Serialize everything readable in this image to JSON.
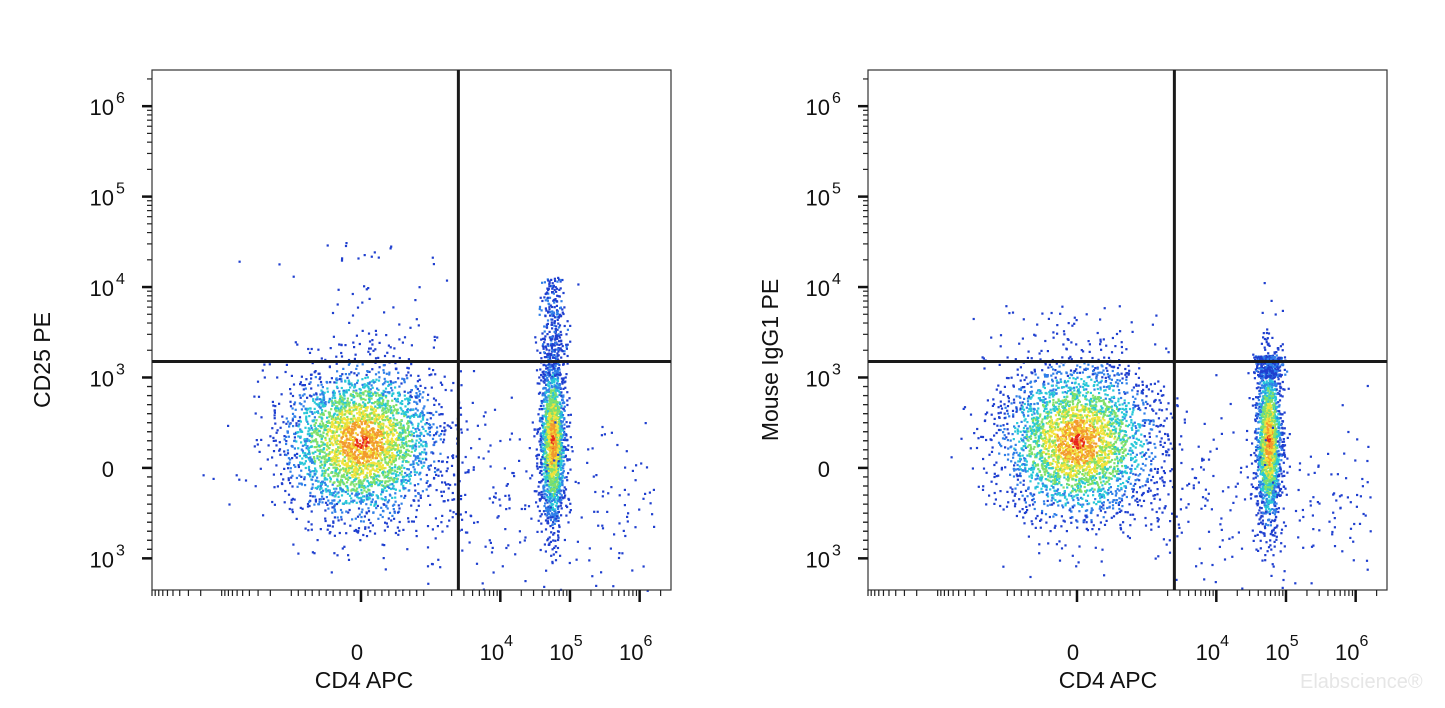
{
  "chart_data": [
    {
      "type": "scatter",
      "subtype": "flow-cytometry-density-dot-plot",
      "title": "",
      "xlabel": "CD4  APC",
      "ylabel": "CD25  PE",
      "x_scale": "biexponential",
      "y_scale": "biexponential",
      "x_ticks": [
        {
          "value": 0,
          "base": "0",
          "exp": ""
        },
        {
          "value": 10000,
          "base": "10",
          "exp": "4"
        },
        {
          "value": 100000,
          "base": "10",
          "exp": "5"
        },
        {
          "value": 1000000,
          "base": "10",
          "exp": "6"
        }
      ],
      "y_ticks": [
        {
          "value": -1000,
          "base": "10",
          "exp": "3"
        },
        {
          "value": 0,
          "base": "0",
          "exp": ""
        },
        {
          "value": 1000,
          "base": "10",
          "exp": "3"
        },
        {
          "value": 10000,
          "base": "10",
          "exp": "4"
        },
        {
          "value": 100000,
          "base": "10",
          "exp": "5"
        },
        {
          "value": 1000000,
          "base": "10",
          "exp": "6"
        }
      ],
      "quadrant_gate": {
        "x": 2500,
        "y": 1500
      },
      "populations": [
        {
          "description": "CD4 negative, CD25 negative",
          "x_center": 0,
          "y_center": 300,
          "events_weight": 0.6
        },
        {
          "description": "CD4 positive",
          "x_center": 55000,
          "y_center": 300,
          "events_weight": 0.4,
          "tail_to_y": 13000
        }
      ],
      "density_colors": [
        "#1f3fcf",
        "#2f7fe8",
        "#27c7d8",
        "#7fe06a",
        "#f2e33b",
        "#f29a2e",
        "#e8261c"
      ],
      "grid": false,
      "legend": "none"
    },
    {
      "type": "scatter",
      "subtype": "flow-cytometry-density-dot-plot",
      "title": "",
      "xlabel": "CD4  APC",
      "ylabel": "Mouse IgG1 PE",
      "x_scale": "biexponential",
      "y_scale": "biexponential",
      "x_ticks": [
        {
          "value": 0,
          "base": "0",
          "exp": ""
        },
        {
          "value": 10000,
          "base": "10",
          "exp": "4"
        },
        {
          "value": 100000,
          "base": "10",
          "exp": "5"
        },
        {
          "value": 1000000,
          "base": "10",
          "exp": "6"
        }
      ],
      "y_ticks": [
        {
          "value": -1000,
          "base": "10",
          "exp": "3"
        },
        {
          "value": 0,
          "base": "0",
          "exp": ""
        },
        {
          "value": 1000,
          "base": "10",
          "exp": "3"
        },
        {
          "value": 10000,
          "base": "10",
          "exp": "4"
        },
        {
          "value": 100000,
          "base": "10",
          "exp": "5"
        },
        {
          "value": 1000000,
          "base": "10",
          "exp": "6"
        }
      ],
      "quadrant_gate": {
        "x": 2500,
        "y": 1500
      },
      "populations": [
        {
          "description": "CD4 negative, isotype negative",
          "x_center": 0,
          "y_center": 300,
          "events_weight": 0.6
        },
        {
          "description": "CD4 positive",
          "x_center": 55000,
          "y_center": 300,
          "events_weight": 0.4,
          "tail_to_y": 1800
        }
      ],
      "density_colors": [
        "#1f3fcf",
        "#2f7fe8",
        "#27c7d8",
        "#7fe06a",
        "#f2e33b",
        "#f29a2e",
        "#e8261c"
      ],
      "grid": false,
      "legend": "none"
    }
  ],
  "watermark": "Elabscience®"
}
